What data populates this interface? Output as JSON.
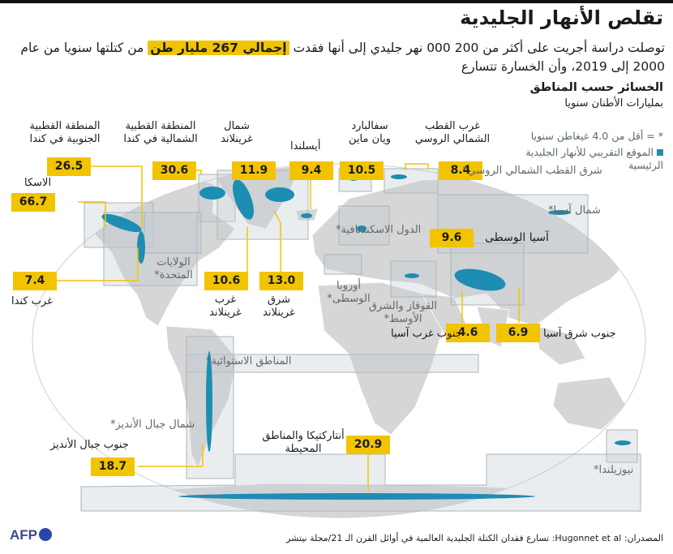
{
  "title": "تقلص الأنهار الجليدية",
  "intro": {
    "part1": "توصلت دراسة أجريت على أكثر من 200 000 نهر جليدي إلى أنها فقدت",
    "highlight": "إجمالي 267 مليار طن",
    "part2": "من كتلتها سنويا من عام 2000 إلى 2019، وأن الخسارة تتسارع"
  },
  "subheading": "الخسائر حسب المناطق",
  "unit": "بمليارات الأطنان سنويا",
  "legend": {
    "footnote": "* = أقل من 4.0 غيغاطن سنويا",
    "location": "الموقع التقريبي للأنهار الجليدية الرئيسية"
  },
  "regions": [
    {
      "id": "alaska",
      "value": "66.7",
      "label": "الاسكا"
    },
    {
      "id": "arctic-south",
      "value": "26.5",
      "label": "المنطقة القطبية الجنوبية في كندا"
    },
    {
      "id": "arctic-north",
      "value": "30.6",
      "label": "المنطقة القطبية الشمالية في كندا"
    },
    {
      "id": "north-greenland",
      "value": "11.9",
      "label": "شمال غرينلاند"
    },
    {
      "id": "iceland",
      "value": "9.4",
      "label": "أيسلندا"
    },
    {
      "id": "svalbard",
      "value": "10.5",
      "label": "سفالبارد ويان ماين"
    },
    {
      "id": "russian-arctic",
      "value": "8.4",
      "label": "غرب القطب الشمالي الروسي"
    },
    {
      "id": "west-canada",
      "value": "7.4",
      "label": "غرب كندا"
    },
    {
      "id": "west-greenland",
      "value": "10.6",
      "label": "غرب غرينلاند"
    },
    {
      "id": "east-greenland",
      "value": "13.0",
      "label": "شرق غرينلاند"
    },
    {
      "id": "central-asia",
      "value": "9.6",
      "label": "آسيا الوسطى"
    },
    {
      "id": "south-west-asia",
      "value": "4.6",
      "label": "جنوب غرب آسيا"
    },
    {
      "id": "south-east-asia",
      "value": "6.9",
      "label": "جنوب شرق آسيا"
    },
    {
      "id": "south-andes",
      "value": "18.7",
      "label": "جنوب جبال الأنديز"
    },
    {
      "id": "antarctic",
      "value": "20.9",
      "label": "أنتاركتيكا والمناطق المحيطة"
    }
  ],
  "minor_regions": {
    "east_russian_arctic": "شرق القطب الشمالي الروسي*",
    "north_asia": "شمال آسيا*",
    "scandinavia": "الدول الاسكندنافية*",
    "usa": "الولايات المتحدة*",
    "central_europe": "أوروبا الوسطى*",
    "caucasus": "القوقاز والشرق الأوسط*",
    "low_latitudes": "المناطق الاستوائية*",
    "north_andes": "شمال جبال الأنديز*",
    "new_zealand": "نيوزيلندا*"
  },
  "footer": "المصدران: Hugonnet et al: تسارع فقدان الكتلة الجليدية العالمية في أوائل القرن الـ 21/مجلة نيتشر",
  "brand": "AFP",
  "colors": {
    "accent": "#f2c400",
    "glacier": "#1d8db3",
    "land": "#d6d6d6",
    "ocean": "#ffffff",
    "box": "#c4ccd1"
  }
}
